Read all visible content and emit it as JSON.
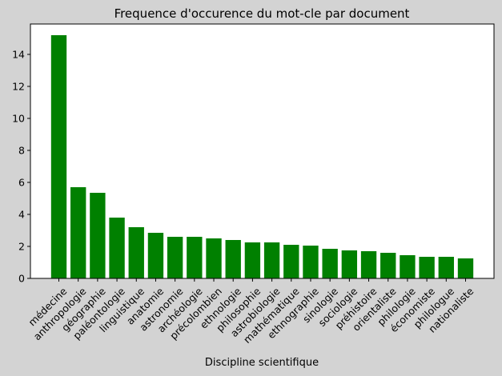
{
  "colors": {
    "background": "#d3d3d3",
    "plot_area": "#ffffff",
    "bar": "#008000"
  },
  "chart_data": {
    "type": "bar",
    "title": "Frequence d'occurence du mot-cle par document",
    "xlabel": "Discipline scientifique",
    "ylabel": "",
    "ylim": [
      0,
      15.9
    ],
    "yticks": [
      0,
      2,
      4,
      6,
      8,
      10,
      12,
      14
    ],
    "grid": false,
    "categories": [
      "médecine",
      "anthropologie",
      "géographie",
      "paléontologie",
      "linguistique",
      "anatomie",
      "astronomie",
      "archéologie",
      "précolombien",
      "ethnologie",
      "philosophie",
      "astrobiologie",
      "mathématique",
      "ethnographie",
      "sinologie",
      "sociologie",
      "préhistoire",
      "orientaliste",
      "philologie",
      "économiste",
      "philologue",
      "nationaliste"
    ],
    "values": [
      15.2,
      5.7,
      5.35,
      3.8,
      3.2,
      2.85,
      2.6,
      2.6,
      2.5,
      2.4,
      2.25,
      2.25,
      2.1,
      2.05,
      1.85,
      1.75,
      1.7,
      1.6,
      1.45,
      1.35,
      1.35,
      1.25
    ]
  }
}
